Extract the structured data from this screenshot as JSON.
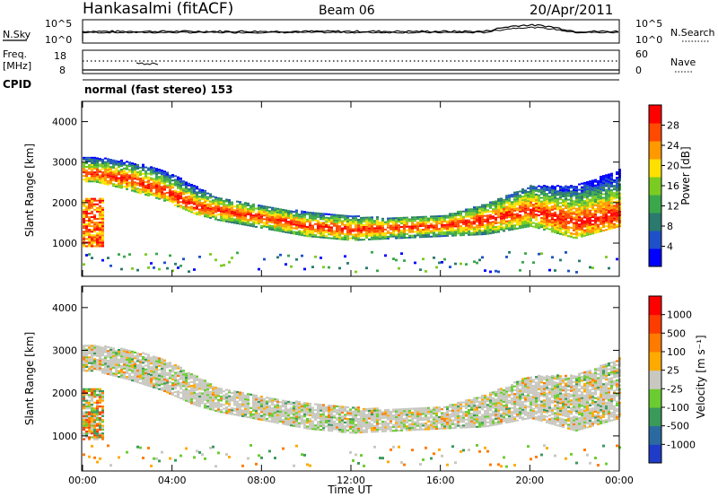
{
  "header": {
    "station": "Hankasalmi (fitACF)",
    "beam": "Beam 06",
    "date": "20/Apr/2011"
  },
  "status_panels": {
    "nsky_label": "N.Sky",
    "nsearch_label": "N.Search",
    "nsky_ticks": [
      "10^5",
      "10^0"
    ],
    "nsearch_ticks": [
      "10^5",
      "10^0"
    ],
    "freq_label_line1": "Freq.",
    "freq_label_line2": "[MHz]",
    "freq_ticks": [
      "18",
      "8"
    ],
    "nave_label": "Nave",
    "nave_ticks": [
      "60",
      "0"
    ],
    "cpid_label": "CPID",
    "cpid_text": "normal (fast stereo) 153"
  },
  "chart_data": [
    {
      "type": "heatmap",
      "panel": "power",
      "ylabel": "Slant Range [km]",
      "xlabel": "",
      "ylim": [
        180,
        4500
      ],
      "yticks": [
        "1000",
        "2000",
        "3000",
        "4000"
      ],
      "xlim": [
        0,
        24
      ],
      "xticks": [
        "00:00",
        "04:00",
        "08:00",
        "12:00",
        "16:00",
        "20:00",
        "00:00"
      ],
      "colorbar": {
        "label": "Power [dB]",
        "ticks": [
          "28",
          "24",
          "20",
          "16",
          "12",
          "8",
          "4"
        ],
        "colors": [
          "#0000ff",
          "#1e50c8",
          "#2a7a6e",
          "#3aa84a",
          "#7acc22",
          "#ffe000",
          "#ff9900",
          "#ff4a00",
          "#ff0000"
        ]
      },
      "bands": [
        {
          "name": "main",
          "x": [
            0.5,
            2,
            3.5,
            5,
            6,
            8,
            10,
            12,
            14,
            16,
            18,
            20,
            22,
            24
          ],
          "y_low": [
            2500,
            2300,
            2050,
            1700,
            1550,
            1350,
            1150,
            1050,
            1100,
            1150,
            1200,
            1400,
            1100,
            1400
          ],
          "y_high": [
            3100,
            3000,
            2800,
            2400,
            2100,
            1900,
            1750,
            1650,
            1600,
            1650,
            1950,
            2400,
            2400,
            2800
          ],
          "core": [
            2700,
            2550,
            2300,
            1900,
            1800,
            1600,
            1400,
            1300,
            1350,
            1400,
            1550,
            1800,
            1500,
            1700
          ]
        }
      ]
    },
    {
      "type": "heatmap",
      "panel": "velocity",
      "ylabel": "Slant Range [km]",
      "xlabel": "Time UT",
      "ylim": [
        180,
        4500
      ],
      "yticks": [
        "1000",
        "2000",
        "3000",
        "4000"
      ],
      "xlim": [
        0,
        24
      ],
      "xticks": [
        "00:00",
        "04:00",
        "08:00",
        "12:00",
        "16:00",
        "20:00",
        "00:00"
      ],
      "colorbar": {
        "label": "Velocity [m s⁻¹]",
        "ticks": [
          "1000",
          "500",
          "100",
          "25",
          "-25",
          "-100",
          "-500",
          "-1000"
        ],
        "colors": [
          "#1e3cc8",
          "#2a6aa0",
          "#3a9a5a",
          "#6acc30",
          "#c8c8c0",
          "#ffaa00",
          "#ff7a00",
          "#ff3c00",
          "#ff0000"
        ]
      }
    }
  ]
}
